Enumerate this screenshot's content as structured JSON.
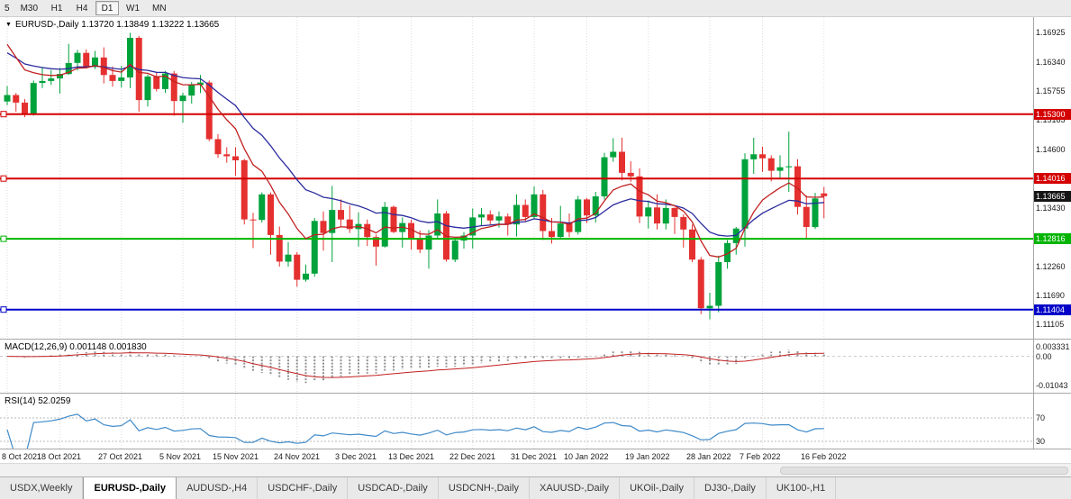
{
  "toolbar": {
    "periods": [
      {
        "label": "5",
        "active": false
      },
      {
        "label": "M30",
        "active": false
      },
      {
        "label": "H1",
        "active": false
      },
      {
        "label": "H4",
        "active": false
      },
      {
        "label": "D1",
        "active": true
      },
      {
        "label": "W1",
        "active": false
      },
      {
        "label": "MN",
        "active": false
      }
    ]
  },
  "chart": {
    "header": "EURUSD-,Daily 1.13720 1.13849 1.13222 1.13665"
  },
  "price_scale": {
    "ticks": [
      "1.16925",
      "1.16340",
      "1.15755",
      "1.15185",
      "1.14600",
      "1.13430",
      "1.12260",
      "1.11690",
      "1.11105"
    ],
    "levels": [
      {
        "price": "1.15300",
        "color": "#d40000"
      },
      {
        "price": "1.14016",
        "color": "#d40000"
      },
      {
        "price": "1.12816",
        "color": "#00b400"
      },
      {
        "price": "1.11404",
        "color": "#0000c8"
      }
    ],
    "current": {
      "price": "1.13665",
      "color": "#151515"
    }
  },
  "macd": {
    "label": "MACD(12,26,9) 0.001148 0.001830",
    "scale": [
      {
        "label": "0.003331",
        "value": 0.003331
      },
      {
        "label": "0.00",
        "value": 0
      },
      {
        "label": "-0.01043",
        "value": -0.01043
      }
    ]
  },
  "rsi": {
    "label": "RSI(14) 52.0259",
    "levels": [
      {
        "label": "70",
        "value": 70
      },
      {
        "label": "30",
        "value": 30
      }
    ]
  },
  "date_axis": [
    {
      "label": "8 Oct 2021",
      "index": 0
    },
    {
      "label": "18 Oct 2021",
      "index": 6
    },
    {
      "label": "27 Oct 2021",
      "index": 13
    },
    {
      "label": "5 Nov 2021",
      "index": 20
    },
    {
      "label": "15 Nov 2021",
      "index": 26
    },
    {
      "label": "24 Nov 2021",
      "index": 33
    },
    {
      "label": "3 Dec 2021",
      "index": 40
    },
    {
      "label": "13 Dec 2021",
      "index": 46
    },
    {
      "label": "22 Dec 2021",
      "index": 53
    },
    {
      "label": "31 Dec 2021",
      "index": 60
    },
    {
      "label": "10 Jan 2022",
      "index": 66
    },
    {
      "label": "19 Jan 2022",
      "index": 73
    },
    {
      "label": "28 Jan 2022",
      "index": 80
    },
    {
      "label": "7 Feb 2022",
      "index": 86
    },
    {
      "label": "16 Feb 2022",
      "index": 93
    }
  ],
  "tabs": [
    {
      "label": "USDX,Weekly",
      "active": false
    },
    {
      "label": "EURUSD-,Daily",
      "active": true
    },
    {
      "label": "AUDUSD-,H4",
      "active": false
    },
    {
      "label": "USDCHF-,Daily",
      "active": false
    },
    {
      "label": "USDCAD-,Daily",
      "active": false
    },
    {
      "label": "USDCNH-,Daily",
      "active": false
    },
    {
      "label": "XAUUSD-,Daily",
      "active": false
    },
    {
      "label": "UKOil-,Daily",
      "active": false
    },
    {
      "label": "DJ30-,Daily",
      "active": false
    },
    {
      "label": "UK100-,H1",
      "active": false
    }
  ],
  "chart_data": {
    "type": "candlestick",
    "symbol": "EURUSD-",
    "timeframe": "Daily",
    "ohlc_header": {
      "open": 1.1372,
      "high": 1.13849,
      "low": 1.13222,
      "close": 1.13665
    },
    "ylim": [
      1.1095,
      1.17
    ],
    "levels": [
      1.153,
      1.14016,
      1.12816,
      1.11404
    ],
    "indicators": [
      {
        "name": "MACD",
        "params": "12,26,9",
        "value": 0.001148,
        "signal": 0.00183,
        "scale_max": 0.003331,
        "scale_min": -0.01043
      },
      {
        "name": "RSI",
        "params": "14",
        "value": 52.0259,
        "bands": [
          70,
          30
        ]
      }
    ],
    "colors": {
      "bull": "#00a23c",
      "bear": "#e53030",
      "ma_fast": "#c22020",
      "ma_slow": "#2b2b9e",
      "macd_hist": "#8f8f8f",
      "macd_signal": "#c22020",
      "rsi_line": "#3f8ac9",
      "grid": "#dedede"
    },
    "candles": [
      [
        1.1555,
        1.1586,
        1.1548,
        1.1568
      ],
      [
        1.1568,
        1.1572,
        1.1535,
        1.1553
      ],
      [
        1.1553,
        1.156,
        1.1524,
        1.153
      ],
      [
        1.153,
        1.1597,
        1.1527,
        1.1592
      ],
      [
        1.1592,
        1.1624,
        1.1582,
        1.1596
      ],
      [
        1.1596,
        1.1618,
        1.1588,
        1.1601
      ],
      [
        1.1601,
        1.1622,
        1.1571,
        1.161
      ],
      [
        1.161,
        1.167,
        1.1608,
        1.1632
      ],
      [
        1.1632,
        1.1658,
        1.1617,
        1.1652
      ],
      [
        1.1652,
        1.1659,
        1.1622,
        1.1624
      ],
      [
        1.1624,
        1.1656,
        1.162,
        1.1643
      ],
      [
        1.1643,
        1.1663,
        1.1591,
        1.1608
      ],
      [
        1.1608,
        1.1625,
        1.1585,
        1.1596
      ],
      [
        1.1596,
        1.1626,
        1.1583,
        1.1603
      ],
      [
        1.1603,
        1.1692,
        1.1582,
        1.1682
      ],
      [
        1.1682,
        1.1686,
        1.1535,
        1.1558
      ],
      [
        1.1558,
        1.1609,
        1.1545,
        1.1605
      ],
      [
        1.1605,
        1.1612,
        1.1575,
        1.158
      ],
      [
        1.158,
        1.1616,
        1.1572,
        1.1611
      ],
      [
        1.1611,
        1.1616,
        1.1527,
        1.1556
      ],
      [
        1.1556,
        1.1573,
        1.1513,
        1.1567
      ],
      [
        1.1567,
        1.1594,
        1.1551,
        1.1588
      ],
      [
        1.1588,
        1.1608,
        1.1572,
        1.1593
      ],
      [
        1.1593,
        1.1597,
        1.1476,
        1.148
      ],
      [
        1.148,
        1.149,
        1.1443,
        1.145
      ],
      [
        1.145,
        1.1464,
        1.1433,
        1.1446
      ],
      [
        1.1446,
        1.1464,
        1.1407,
        1.1438
      ],
      [
        1.1438,
        1.1441,
        1.131,
        1.132
      ],
      [
        1.132,
        1.1333,
        1.1263,
        1.1319
      ],
      [
        1.1319,
        1.1374,
        1.1314,
        1.137
      ],
      [
        1.137,
        1.1374,
        1.125,
        1.1289
      ],
      [
        1.1289,
        1.1306,
        1.1226,
        1.1236
      ],
      [
        1.1236,
        1.1275,
        1.1226,
        1.125
      ],
      [
        1.125,
        1.1255,
        1.1186,
        1.12
      ],
      [
        1.12,
        1.123,
        1.1196,
        1.1212
      ],
      [
        1.1212,
        1.1323,
        1.1206,
        1.1317
      ],
      [
        1.1317,
        1.1336,
        1.1258,
        1.1293
      ],
      [
        1.1293,
        1.1387,
        1.1235,
        1.1339
      ],
      [
        1.1339,
        1.136,
        1.1305,
        1.132
      ],
      [
        1.132,
        1.1348,
        1.1293,
        1.1301
      ],
      [
        1.1301,
        1.1334,
        1.1266,
        1.1311
      ],
      [
        1.1311,
        1.132,
        1.1267,
        1.1285
      ],
      [
        1.1285,
        1.129,
        1.1228,
        1.1266
      ],
      [
        1.1266,
        1.1355,
        1.1264,
        1.1345
      ],
      [
        1.1345,
        1.1348,
        1.1293,
        1.1295
      ],
      [
        1.1295,
        1.1324,
        1.1264,
        1.1313
      ],
      [
        1.1313,
        1.132,
        1.126,
        1.1283
      ],
      [
        1.1283,
        1.1298,
        1.1253,
        1.126
      ],
      [
        1.126,
        1.1299,
        1.1222,
        1.1288
      ],
      [
        1.1288,
        1.136,
        1.1281,
        1.1332
      ],
      [
        1.1332,
        1.1337,
        1.1236,
        1.124
      ],
      [
        1.124,
        1.128,
        1.1235,
        1.1278
      ],
      [
        1.1278,
        1.1295,
        1.1262,
        1.1288
      ],
      [
        1.1288,
        1.1342,
        1.1262,
        1.1324
      ],
      [
        1.1324,
        1.1343,
        1.1308,
        1.133
      ],
      [
        1.133,
        1.1338,
        1.1308,
        1.1318
      ],
      [
        1.1318,
        1.1336,
        1.1304,
        1.1326
      ],
      [
        1.1326,
        1.1332,
        1.1288,
        1.131
      ],
      [
        1.131,
        1.137,
        1.1286,
        1.1349
      ],
      [
        1.1349,
        1.136,
        1.1315,
        1.1325
      ],
      [
        1.1325,
        1.1386,
        1.132,
        1.137
      ],
      [
        1.137,
        1.1379,
        1.1279,
        1.1297
      ],
      [
        1.1297,
        1.1323,
        1.1272,
        1.1285
      ],
      [
        1.1285,
        1.1347,
        1.128,
        1.1312
      ],
      [
        1.1312,
        1.1332,
        1.1285,
        1.1295
      ],
      [
        1.1295,
        1.1367,
        1.129,
        1.136
      ],
      [
        1.136,
        1.1363,
        1.1313,
        1.1328
      ],
      [
        1.1328,
        1.1375,
        1.1314,
        1.1366
      ],
      [
        1.1366,
        1.1453,
        1.136,
        1.1444
      ],
      [
        1.1444,
        1.1482,
        1.1435,
        1.1455
      ],
      [
        1.1455,
        1.1483,
        1.1398,
        1.1413
      ],
      [
        1.1413,
        1.1436,
        1.1395,
        1.1406
      ],
      [
        1.1406,
        1.1422,
        1.1313,
        1.1326
      ],
      [
        1.1326,
        1.1358,
        1.1302,
        1.1344
      ],
      [
        1.1344,
        1.137,
        1.13,
        1.1312
      ],
      [
        1.1312,
        1.136,
        1.13,
        1.1343
      ],
      [
        1.1343,
        1.1344,
        1.1291,
        1.1325
      ],
      [
        1.1325,
        1.133,
        1.1264,
        1.13
      ],
      [
        1.13,
        1.131,
        1.1235,
        1.124
      ],
      [
        1.124,
        1.1245,
        1.1131,
        1.1143
      ],
      [
        1.1143,
        1.1174,
        1.1121,
        1.1148
      ],
      [
        1.1148,
        1.1248,
        1.1135,
        1.1235
      ],
      [
        1.1235,
        1.1279,
        1.1222,
        1.1273
      ],
      [
        1.1273,
        1.1305,
        1.125,
        1.1302
      ],
      [
        1.1302,
        1.1452,
        1.1266,
        1.144
      ],
      [
        1.144,
        1.1483,
        1.1411,
        1.145
      ],
      [
        1.145,
        1.1465,
        1.1415,
        1.1442
      ],
      [
        1.1442,
        1.1448,
        1.1396,
        1.1417
      ],
      [
        1.1417,
        1.1448,
        1.1403,
        1.1424
      ],
      [
        1.1424,
        1.1495,
        1.1375,
        1.1426
      ],
      [
        1.1426,
        1.144,
        1.133,
        1.1345
      ],
      [
        1.1345,
        1.1368,
        1.128,
        1.1305
      ],
      [
        1.1305,
        1.1373,
        1.1301,
        1.1362
      ],
      [
        1.1372,
        1.13849,
        1.13222,
        1.13665
      ]
    ]
  }
}
